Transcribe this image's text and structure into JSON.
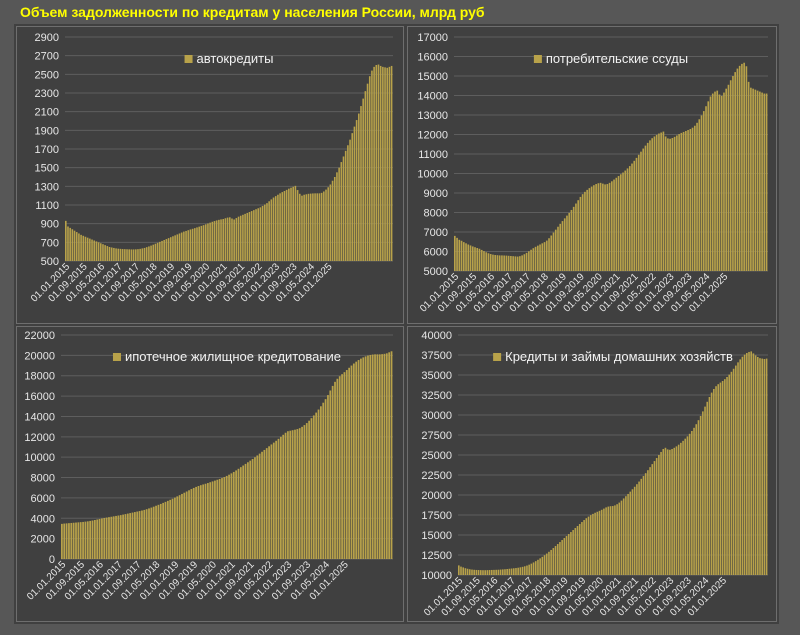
{
  "title": "Объем задолженности по кредитам у населения России, млрд руб",
  "colors": {
    "background": "#575757",
    "panel": "#404040",
    "bar": "#b8a24a",
    "title": "#ffff00",
    "gridline": "#5e5e5e",
    "text": "#e6e6e6"
  },
  "chart_data": [
    {
      "type": "bar",
      "legend": "автокредиты",
      "legend_position": "top-center",
      "grid": true,
      "ylim": [
        500,
        2900
      ],
      "yticks": [
        "500",
        "700",
        "900",
        "1100",
        "1300",
        "1500",
        "1700",
        "1900",
        "2100",
        "2300",
        "2500",
        "2700",
        "2900"
      ],
      "x_tick_labels": [
        "01.01.2015",
        "01.09.2015",
        "01.05.2016",
        "01.01.2017",
        "01.09.2017",
        "01.05.2018",
        "01.01.2019",
        "01.09.2019",
        "01.05.2020",
        "01.01.2021",
        "01.09.2021",
        "01.05.2022",
        "01.01.2023",
        "01.09.2023",
        "01.05.2024",
        "01.01.2025"
      ],
      "x_start": "2015-01",
      "series": [
        {
          "name": "автокредиты",
          "values": [
            930,
            870,
            855,
            840,
            825,
            810,
            795,
            780,
            770,
            760,
            750,
            740,
            730,
            720,
            710,
            700,
            690,
            680,
            670,
            660,
            650,
            645,
            640,
            635,
            632,
            630,
            628,
            627,
            626,
            625,
            624,
            624,
            625,
            627,
            630,
            635,
            640,
            648,
            656,
            665,
            675,
            685,
            695,
            705,
            715,
            725,
            735,
            745,
            755,
            765,
            775,
            785,
            795,
            805,
            815,
            822,
            830,
            838,
            845,
            852,
            860,
            868,
            876,
            884,
            893,
            902,
            911,
            920,
            928,
            935,
            941,
            946,
            950,
            958,
            965,
            968,
            955,
            945,
            960,
            975,
            985,
            995,
            1005,
            1015,
            1025,
            1035,
            1045,
            1055,
            1065,
            1075,
            1090,
            1105,
            1120,
            1140,
            1160,
            1180,
            1195,
            1210,
            1225,
            1238,
            1250,
            1262,
            1275,
            1285,
            1295,
            1305,
            1260,
            1220,
            1200,
            1210,
            1215,
            1220,
            1222,
            1224,
            1225,
            1225,
            1225,
            1230,
            1245,
            1265,
            1290,
            1320,
            1360,
            1400,
            1450,
            1500,
            1560,
            1620,
            1680,
            1740,
            1800,
            1870,
            1940,
            2010,
            2080,
            2160,
            2240,
            2320,
            2400,
            2480,
            2540,
            2580,
            2600,
            2605,
            2590,
            2580,
            2575,
            2570,
            2580,
            2590
          ]
        }
      ]
    },
    {
      "type": "bar",
      "legend": "потребительские ссуды",
      "legend_position": "top-center",
      "grid": true,
      "ylim": [
        5000,
        17000
      ],
      "yticks": [
        "5000",
        "6000",
        "7000",
        "8000",
        "9000",
        "10000",
        "11000",
        "12000",
        "13000",
        "14000",
        "15000",
        "16000",
        "17000"
      ],
      "x_tick_labels": [
        "01.01.2015",
        "01.09.2015",
        "01.05.2016",
        "01.01.2017",
        "01.09.2017",
        "01.05.2018",
        "01.01.2019",
        "01.09.2019",
        "01.05.2020",
        "01.01.2021",
        "01.09.2021",
        "01.05.2022",
        "01.01.2023",
        "01.09.2023",
        "01.05.2024",
        "01.01.2025"
      ],
      "x_start": "2015-01",
      "series": [
        {
          "name": "потребительские ссуды",
          "values": [
            6800,
            6700,
            6600,
            6550,
            6480,
            6420,
            6360,
            6310,
            6260,
            6220,
            6180,
            6140,
            6080,
            6020,
            5960,
            5910,
            5870,
            5840,
            5820,
            5810,
            5800,
            5800,
            5795,
            5790,
            5780,
            5770,
            5760,
            5750,
            5740,
            5760,
            5800,
            5860,
            5930,
            6010,
            6090,
            6170,
            6240,
            6300,
            6360,
            6420,
            6480,
            6560,
            6680,
            6820,
            6970,
            7120,
            7270,
            7420,
            7560,
            7700,
            7840,
            7980,
            8130,
            8290,
            8460,
            8630,
            8800,
            8940,
            9060,
            9160,
            9250,
            9330,
            9400,
            9460,
            9500,
            9520,
            9480,
            9440,
            9460,
            9520,
            9600,
            9690,
            9780,
            9870,
            9960,
            10050,
            10150,
            10260,
            10380,
            10510,
            10650,
            10800,
            10960,
            11120,
            11280,
            11430,
            11570,
            11700,
            11810,
            11900,
            11980,
            12050,
            12100,
            12150,
            11900,
            11800,
            11780,
            11820,
            11880,
            11950,
            12020,
            12080,
            12130,
            12180,
            12230,
            12280,
            12350,
            12450,
            12600,
            12780,
            12980,
            13200,
            13450,
            13700,
            13950,
            14100,
            14200,
            14250,
            14050,
            13980,
            14150,
            14350,
            14550,
            14780,
            15000,
            15200,
            15380,
            15520,
            15620,
            15680,
            15500,
            14700,
            14400,
            14350,
            14300,
            14250,
            14200,
            14150,
            14100,
            14100
          ]
        }
      ]
    },
    {
      "type": "bar",
      "legend": "ипотечное жилищное кредитование",
      "legend_position": "top-center",
      "grid": true,
      "ylim": [
        0,
        22000
      ],
      "yticks": [
        "0",
        "2000",
        "4000",
        "6000",
        "8000",
        "10000",
        "12000",
        "14000",
        "16000",
        "18000",
        "20000",
        "22000"
      ],
      "x_tick_labels": [
        "01.01.2015",
        "01.09.2015",
        "01.05.2016",
        "01.01.2017",
        "01.09.2017",
        "01.05.2018",
        "01.01.2019",
        "01.09.2019",
        "01.05.2020",
        "01.01.2021",
        "01.09.2021",
        "01.05.2022",
        "01.01.2023",
        "01.09.2023",
        "01.05.2024",
        "01.01.2025"
      ],
      "x_start": "2015-01",
      "series": [
        {
          "name": "ипотечное жилищное кредитование",
          "values": [
            3450,
            3480,
            3500,
            3520,
            3540,
            3560,
            3580,
            3600,
            3620,
            3640,
            3670,
            3700,
            3740,
            3780,
            3830,
            3880,
            3930,
            3980,
            4030,
            4070,
            4110,
            4150,
            4190,
            4230,
            4270,
            4310,
            4360,
            4410,
            4460,
            4510,
            4560,
            4610,
            4660,
            4710,
            4760,
            4820,
            4890,
            4970,
            5050,
            5140,
            5230,
            5320,
            5410,
            5510,
            5610,
            5710,
            5810,
            5920,
            6030,
            6150,
            6270,
            6390,
            6510,
            6630,
            6750,
            6870,
            6980,
            7080,
            7170,
            7250,
            7320,
            7390,
            7460,
            7540,
            7620,
            7700,
            7780,
            7860,
            7950,
            8050,
            8160,
            8280,
            8410,
            8550,
            8700,
            8860,
            9020,
            9180,
            9340,
            9500,
            9660,
            9820,
            9990,
            10170,
            10350,
            10530,
            10710,
            10890,
            11070,
            11250,
            11430,
            11610,
            11800,
            12000,
            12200,
            12400,
            12550,
            12600,
            12650,
            12700,
            12760,
            12850,
            12980,
            13150,
            13350,
            13580,
            13830,
            14100,
            14380,
            14680,
            15000,
            15350,
            15700,
            16100,
            16550,
            17000,
            17400,
            17700,
            17950,
            18150,
            18350,
            18560,
            18780,
            19000,
            19200,
            19380,
            19540,
            19680,
            19800,
            19900,
            19980,
            20040,
            20080,
            20100,
            20100,
            20100,
            20120,
            20150,
            20200,
            20300,
            20400
          ]
        }
      ]
    },
    {
      "type": "bar",
      "legend": "Кредиты и займы домашних хозяйств",
      "legend_position": "top-center",
      "grid": true,
      "ylim": [
        10000,
        40000
      ],
      "yticks": [
        "10000",
        "12500",
        "15000",
        "17500",
        "20000",
        "22500",
        "25000",
        "27500",
        "30000",
        "32500",
        "35000",
        "37500",
        "40000"
      ],
      "x_tick_labels": [
        "01.01.2015",
        "01.09.2015",
        "01.05.2016",
        "01.01.2017",
        "01.09.2017",
        "01.05.2018",
        "01.01.2019",
        "01.09.2019",
        "01.05.2020",
        "01.01.2021",
        "01.09.2021",
        "01.05.2022",
        "01.01.2023",
        "01.09.2023",
        "01.05.2024",
        "01.01.2025"
      ],
      "x_start": "2015-01",
      "series": [
        {
          "name": "Кредиты и займы домашних хозяйств",
          "values": [
            11200,
            11050,
            10950,
            10850,
            10780,
            10720,
            10680,
            10650,
            10630,
            10620,
            10610,
            10600,
            10600,
            10610,
            10620,
            10630,
            10640,
            10650,
            10660,
            10680,
            10700,
            10720,
            10750,
            10780,
            10810,
            10840,
            10870,
            10910,
            10960,
            11020,
            11090,
            11180,
            11290,
            11420,
            11570,
            11730,
            11900,
            12080,
            12270,
            12470,
            12680,
            12900,
            13130,
            13370,
            13620,
            13870,
            14120,
            14370,
            14620,
            14870,
            15120,
            15370,
            15620,
            15870,
            16120,
            16370,
            16620,
            16870,
            17100,
            17300,
            17480,
            17640,
            17780,
            17900,
            18020,
            18150,
            18300,
            18450,
            18550,
            18600,
            18620,
            18700,
            18850,
            19050,
            19300,
            19570,
            19850,
            20130,
            20420,
            20720,
            21030,
            21350,
            21680,
            22020,
            22370,
            22730,
            23100,
            23480,
            23860,
            24240,
            24620,
            25000,
            25380,
            25750,
            25900,
            25700,
            25650,
            25750,
            25900,
            26080,
            26290,
            26520,
            26770,
            27040,
            27330,
            27650,
            28000,
            28400,
            28850,
            29350,
            29880,
            30450,
            31050,
            31650,
            32250,
            32800,
            33250,
            33600,
            33850,
            34050,
            34250,
            34480,
            34750,
            35050,
            35400,
            35780,
            36180,
            36580,
            36950,
            37280,
            37550,
            37750,
            37880,
            37950,
            37700,
            37450,
            37250,
            37100,
            37050,
            37000,
            37050
          ]
        }
      ]
    }
  ]
}
